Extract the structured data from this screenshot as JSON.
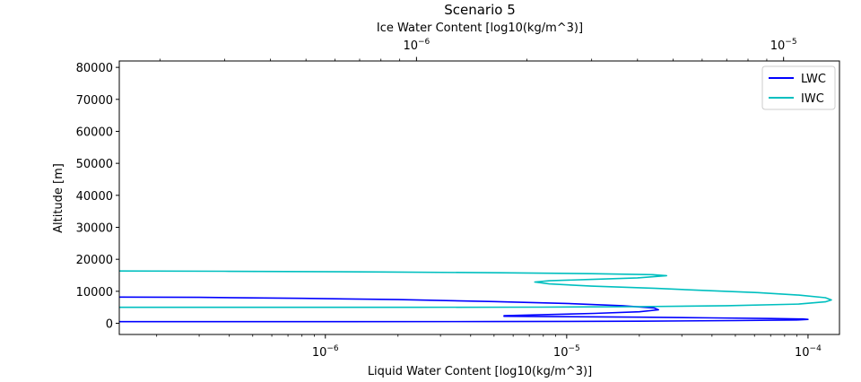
{
  "chart_data": {
    "type": "line",
    "title": "Scenario 5",
    "xlabel": "Liquid Water Content [log10(kg/m^3)]",
    "x2label": "Ice Water Content [log10(kg/m^3)]",
    "ylabel": "Altitude [m]",
    "xscale": "log",
    "x2scale": "log",
    "xlim": [
      1.4e-07,
      0.000135
    ],
    "x2lim": [
      1.55e-07,
      1.42e-05
    ],
    "ylim": [
      -3500,
      82000
    ],
    "yticks": [
      0,
      10000,
      20000,
      30000,
      40000,
      50000,
      60000,
      70000,
      80000
    ],
    "ytick_labels": [
      "0",
      "10000",
      "20000",
      "30000",
      "40000",
      "50000",
      "60000",
      "70000",
      "80000"
    ],
    "xticks": [
      1e-06,
      1e-05,
      0.0001
    ],
    "xtick_labels": [
      {
        "base": "10",
        "exp": "−6"
      },
      {
        "base": "10",
        "exp": "−5"
      },
      {
        "base": "10",
        "exp": "−4"
      }
    ],
    "x2ticks": [
      1e-06,
      1e-05
    ],
    "x2tick_labels": [
      {
        "base": "10",
        "exp": "−6"
      },
      {
        "base": "10",
        "exp": "−5"
      }
    ],
    "legend_position": "upper-right",
    "grid": false,
    "series": [
      {
        "name": "LWC",
        "color": "#0000ff",
        "axis": "bottom",
        "points": [
          [
            1.4e-07,
            500
          ],
          [
            1e-06,
            500
          ],
          [
            5e-06,
            550
          ],
          [
            2e-05,
            650
          ],
          [
            5e-05,
            850
          ],
          [
            9e-05,
            1050
          ],
          [
            0.0001,
            1200
          ],
          [
            9.5e-05,
            1350
          ],
          [
            7e-05,
            1500
          ],
          [
            4e-05,
            1700
          ],
          [
            2e-05,
            1900
          ],
          [
            1e-05,
            2050
          ],
          [
            5.5e-06,
            2200
          ],
          [
            5.5e-06,
            2400
          ],
          [
            8e-06,
            2700
          ],
          [
            1.3e-05,
            3100
          ],
          [
            2e-05,
            3600
          ],
          [
            2.4e-05,
            4200
          ],
          [
            2.3e-05,
            4800
          ],
          [
            1.7e-05,
            5500
          ],
          [
            1e-05,
            6200
          ],
          [
            5e-06,
            6800
          ],
          [
            2e-06,
            7400
          ],
          [
            8e-07,
            7800
          ],
          [
            3e-07,
            8100
          ],
          [
            1.4e-07,
            8200
          ]
        ]
      },
      {
        "name": "IWC",
        "color": "#00bfbf",
        "axis": "top",
        "points": [
          [
            1.55e-07,
            5000
          ],
          [
            1e-06,
            5000
          ],
          [
            2.2e-06,
            5050
          ],
          [
            4e-06,
            5200
          ],
          [
            7e-06,
            5500
          ],
          [
            1.1e-05,
            6000
          ],
          [
            1.3e-05,
            6700
          ],
          [
            1.35e-05,
            7300
          ],
          [
            1.3e-05,
            8000
          ],
          [
            1.1e-05,
            8800
          ],
          [
            8.5e-06,
            9600
          ],
          [
            6e-06,
            10300
          ],
          [
            4.5e-06,
            10900
          ],
          [
            3e-06,
            11600
          ],
          [
            2.3e-06,
            12300
          ],
          [
            2.1e-06,
            12900
          ],
          [
            2.3e-06,
            13300
          ],
          [
            3e-06,
            13700
          ],
          [
            4e-06,
            14200
          ],
          [
            4.8e-06,
            14900
          ],
          [
            4.4e-06,
            15200
          ],
          [
            3e-06,
            15500
          ],
          [
            1.7e-06,
            15800
          ],
          [
            8e-07,
            16050
          ],
          [
            3e-07,
            16250
          ],
          [
            1.55e-07,
            16350
          ]
        ]
      }
    ]
  }
}
